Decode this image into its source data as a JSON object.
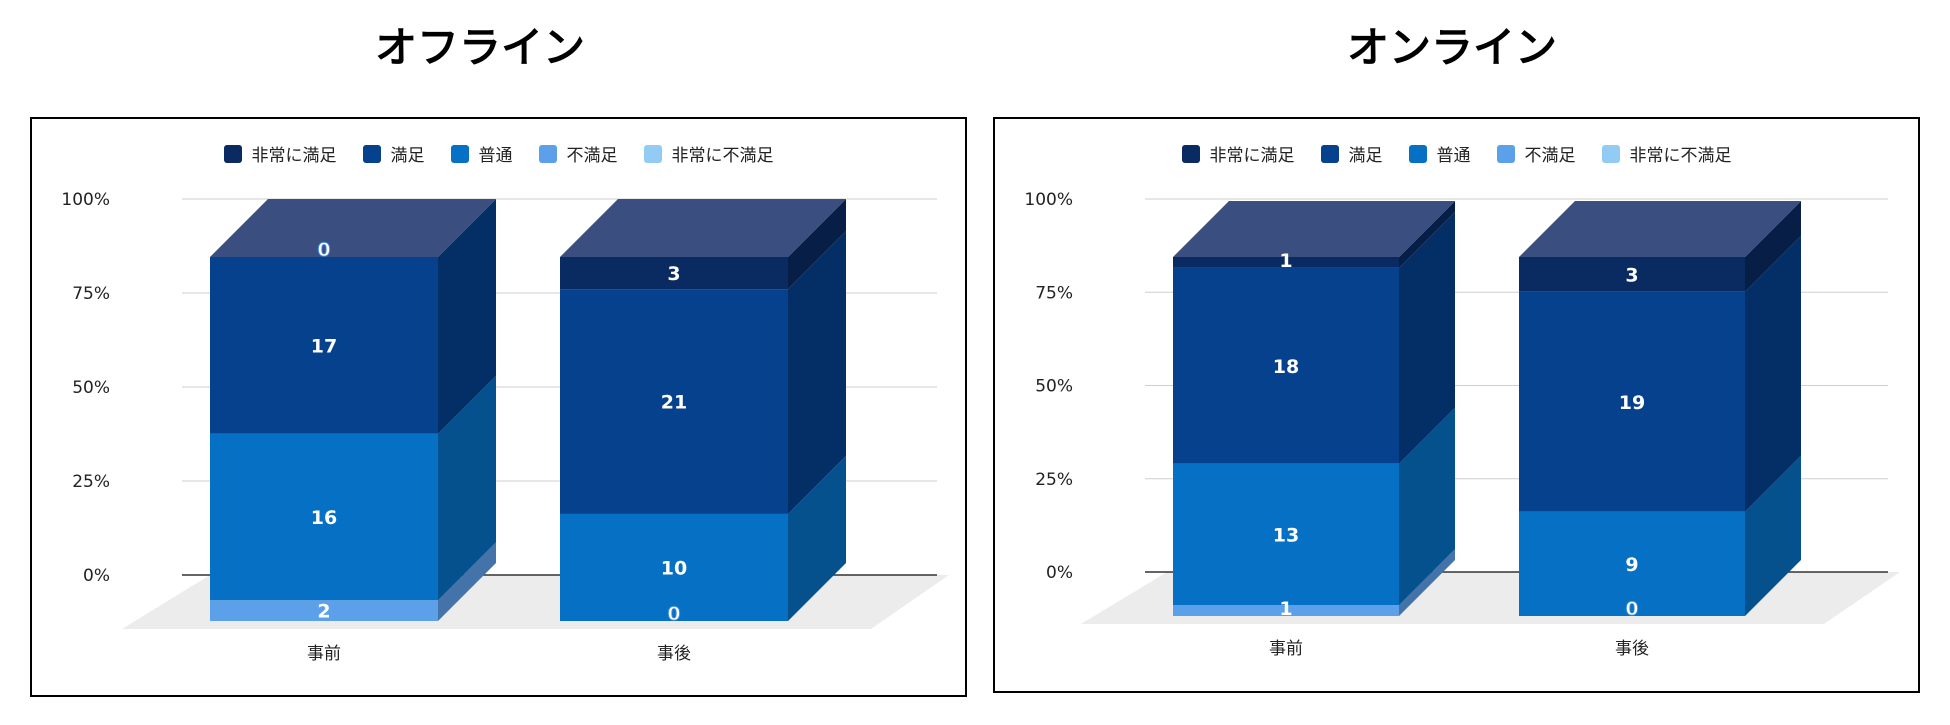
{
  "colors": {
    "very_satisfied": "#0a2a62",
    "satisfied": "#06418d",
    "neutral": "#0670c4",
    "dissatisfied": "#5da0ea",
    "very_dissatisfied": "#92ccf5"
  },
  "chart_data": [
    {
      "type": "bar",
      "stacked": "percent",
      "three_d": true,
      "title": "オフライン",
      "categories": [
        "事前",
        "事後"
      ],
      "y_ticks": [
        "100%",
        "75%",
        "50%",
        "25%",
        "0%"
      ],
      "ylim": [
        0,
        100
      ],
      "grid": true,
      "legend_position": "top",
      "series": [
        {
          "name": "非常に満足",
          "key": "very_satisfied",
          "values": [
            0,
            3
          ]
        },
        {
          "name": "満足",
          "key": "satisfied",
          "values": [
            17,
            21
          ]
        },
        {
          "name": "普通",
          "key": "neutral",
          "values": [
            16,
            10
          ]
        },
        {
          "name": "不満足",
          "key": "dissatisfied",
          "values": [
            2,
            0
          ]
        },
        {
          "name": "非常に不満足",
          "key": "very_dissatisfied",
          "values": [
            0,
            0
          ]
        }
      ]
    },
    {
      "type": "bar",
      "stacked": "percent",
      "three_d": true,
      "title": "オンライン",
      "categories": [
        "事前",
        "事後"
      ],
      "y_ticks": [
        "100%",
        "75%",
        "50%",
        "25%",
        "0%"
      ],
      "ylim": [
        0,
        100
      ],
      "grid": true,
      "legend_position": "top",
      "series": [
        {
          "name": "非常に満足",
          "key": "very_satisfied",
          "values": [
            1,
            3
          ]
        },
        {
          "name": "満足",
          "key": "satisfied",
          "values": [
            18,
            19
          ]
        },
        {
          "name": "普通",
          "key": "neutral",
          "values": [
            13,
            9
          ]
        },
        {
          "name": "不満足",
          "key": "dissatisfied",
          "values": [
            1,
            0
          ]
        },
        {
          "name": "非常に不満足",
          "key": "very_dissatisfied",
          "values": [
            0,
            0
          ]
        }
      ]
    }
  ]
}
